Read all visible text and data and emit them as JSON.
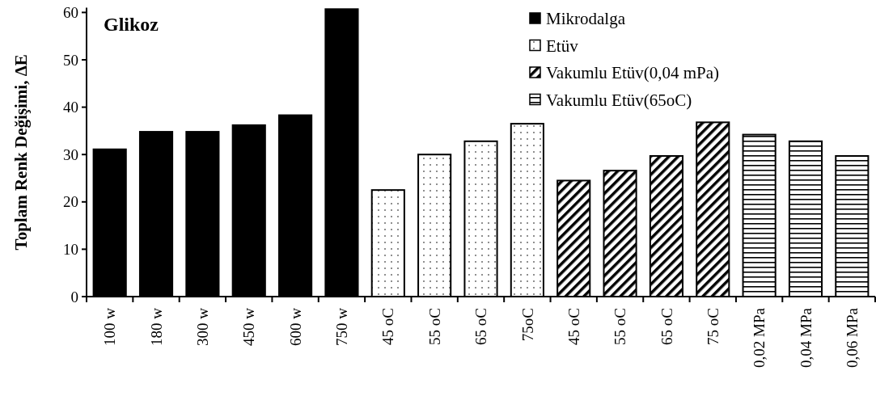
{
  "chart_data": {
    "type": "bar",
    "title": "Glikoz",
    "ylabel": "Toplam Renk Değişimi, ΔE",
    "categories": [
      "100 w",
      "180 w",
      "300 w",
      "450 w",
      "600 w",
      "750 w",
      "45 oC",
      "55 oC",
      "65 oC",
      "75oC",
      "45 oC",
      "55 oC",
      "65 oC",
      "75 oC",
      "0,02 MPa",
      "0,04 MPa",
      "0,06 MPa"
    ],
    "series": [
      {
        "name": "Mikrodalga",
        "color": "#000000",
        "values": [
          31.1,
          34.8,
          34.8,
          36.2,
          38.3,
          60.7,
          null,
          null,
          null,
          null,
          null,
          null,
          null,
          null,
          null,
          null,
          null
        ]
      },
      {
        "name": "Etüv",
        "color": "#000000",
        "values": [
          null,
          null,
          null,
          null,
          null,
          null,
          22.5,
          30.0,
          32.8,
          36.5,
          null,
          null,
          null,
          null,
          null,
          null,
          null
        ]
      },
      {
        "name": "Vakumlu Etüv(0,04 mPa)",
        "color": "#000000",
        "values": [
          null,
          null,
          null,
          null,
          null,
          null,
          null,
          null,
          null,
          null,
          24.5,
          26.6,
          29.7,
          36.8,
          null,
          null,
          null
        ]
      },
      {
        "name": "Vakumlu Etüv(65oC)",
        "color": "#000000",
        "values": [
          null,
          null,
          null,
          null,
          null,
          null,
          null,
          null,
          null,
          null,
          null,
          null,
          null,
          null,
          34.2,
          32.8,
          29.7
        ]
      }
    ],
    "ylim": [
      0,
      61
    ],
    "yticks": [
      0,
      10,
      20,
      30,
      40,
      50,
      60
    ],
    "legend": "top right"
  }
}
